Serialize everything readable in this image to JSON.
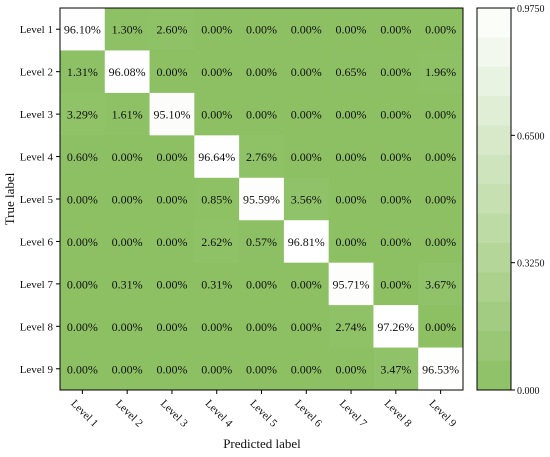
{
  "chart_data": {
    "type": "heatmap",
    "x_categories": [
      "Level 1",
      "Level 2",
      "Level 3",
      "Level 4",
      "Level 5",
      "Level 6",
      "Level 7",
      "Level 8",
      "Level 9"
    ],
    "y_categories": [
      "Level 1",
      "Level 2",
      "Level 3",
      "Level 4",
      "Level 5",
      "Level 6",
      "Level 7",
      "Level 8",
      "Level 9"
    ],
    "xlabel": "Predicted label",
    "ylabel": "True label",
    "values": [
      [
        96.1,
        1.3,
        2.6,
        0.0,
        0.0,
        0.0,
        0.0,
        0.0,
        0.0
      ],
      [
        1.31,
        96.08,
        0.0,
        0.0,
        0.0,
        0.0,
        0.65,
        0.0,
        1.96
      ],
      [
        3.29,
        1.61,
        95.1,
        0.0,
        0.0,
        0.0,
        0.0,
        0.0,
        0.0
      ],
      [
        0.6,
        0.0,
        0.0,
        96.64,
        2.76,
        0.0,
        0.0,
        0.0,
        0.0
      ],
      [
        0.0,
        0.0,
        0.0,
        0.85,
        95.59,
        3.56,
        0.0,
        0.0,
        0.0
      ],
      [
        0.0,
        0.0,
        0.0,
        2.62,
        0.57,
        96.81,
        0.0,
        0.0,
        0.0
      ],
      [
        0.0,
        0.31,
        0.0,
        0.31,
        0.0,
        0.0,
        95.71,
        0.0,
        3.67
      ],
      [
        0.0,
        0.0,
        0.0,
        0.0,
        0.0,
        0.0,
        2.74,
        97.26,
        0.0
      ],
      [
        0.0,
        0.0,
        0.0,
        0.0,
        0.0,
        0.0,
        0.0,
        3.47,
        96.53
      ]
    ],
    "colorbar": {
      "min": 0.0,
      "max": 0.975,
      "ticks": [
        "0.000",
        "0.3250",
        "0.6500",
        "0.9750"
      ],
      "tick_values": [
        0.0,
        0.325,
        0.65,
        0.975
      ]
    },
    "colors": {
      "low": "#8cc063",
      "high": "#ffffff"
    },
    "grid": false
  }
}
